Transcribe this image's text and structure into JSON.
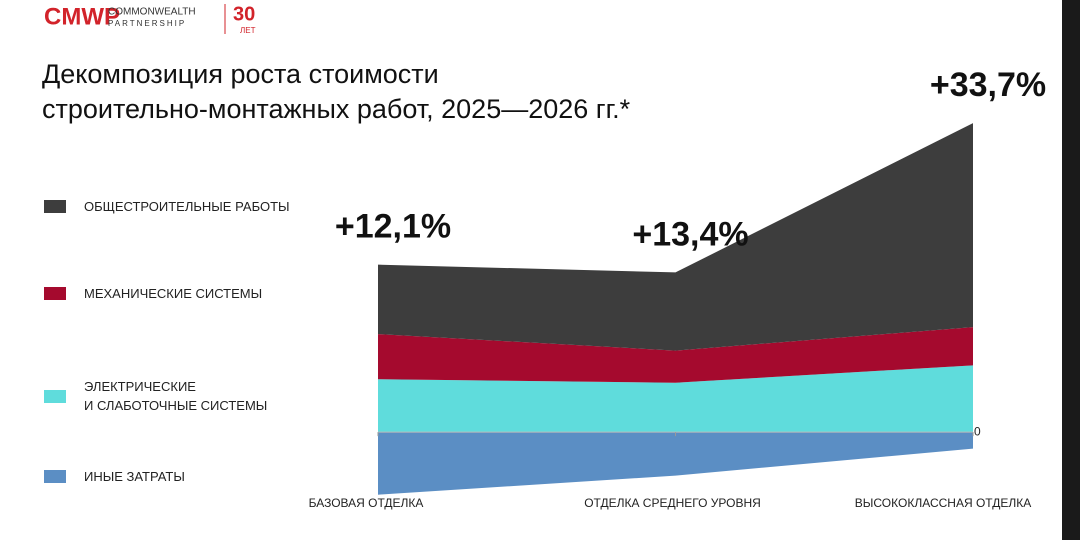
{
  "header": {
    "logo": "CMWP",
    "company_line1": "COMMONWEALTH",
    "company_line2": "PARTNERSHIP",
    "years": "30",
    "years_unit": "ЛЕТ"
  },
  "chart_data": {
    "type": "stacked-area",
    "title": [
      "Декомпозиция роста стоимости",
      "строительно-монтажных работ, 2025—2026 гг.*"
    ],
    "categories": [
      "БАЗОВАЯ ОТДЕЛКА",
      "ОТДЕЛКА СРЕДНЕГО УРОВНЯ",
      "ВЫСОКОКЛАССНАЯ ОТДЕЛКА"
    ],
    "series": [
      {
        "name": "ОБЩЕСТРОИТЕЛЬНЫЕ РАБОТЫ",
        "color": "#3d3d3d",
        "values": [
          8.0,
          9.0,
          23.5
        ]
      },
      {
        "name": "МЕХАНИЧЕСКИЕ СИСТЕМЫ",
        "color": "#a50a2e",
        "values": [
          5.2,
          3.7,
          4.4
        ]
      },
      {
        "name": "ЭЛЕКТРИЧЕСКИЕ\nИ СЛАБОТОЧНЫЕ СИСТЕМЫ",
        "color": "#5fdcdc",
        "values": [
          6.1,
          5.7,
          7.7
        ]
      },
      {
        "name": "ИНЫЕ ЗАТРАТЫ",
        "color": "#5b8ec4",
        "values": [
          -7.2,
          -5.0,
          -1.9
        ]
      }
    ],
    "annotations": [
      "+12,1%",
      "+13,4%",
      "+33,7%"
    ],
    "ylim": [
      -10,
      45
    ],
    "yticks": [
      0
    ]
  }
}
